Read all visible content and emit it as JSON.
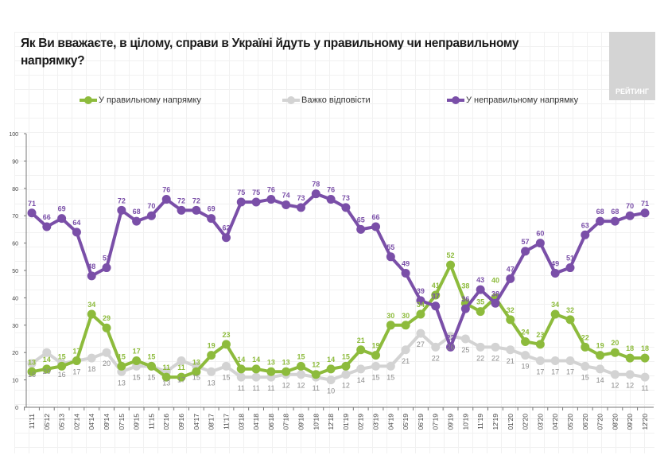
{
  "title": "Як Ви вважаєте, в цілому, справи в Україні йдуть у правильному чи неправильному напрямку?",
  "logo_text": "РЕЙТИНГ",
  "chart_data": {
    "type": "line",
    "title": "Як Ви вважаєте, в цілому, справи в Україні йдуть у правильному чи неправильному напрямку?",
    "xlabel": "",
    "ylabel": "",
    "ylim": [
      0,
      100
    ],
    "yticks": [
      "0",
      "10",
      "20",
      "30",
      "40",
      "50",
      "60",
      "70",
      "80",
      "90",
      "100"
    ],
    "grid": true,
    "legend": "top",
    "x": [
      "11'11",
      "05'12",
      "05'13",
      "02'14",
      "04'14",
      "09'14",
      "07'15",
      "09'15",
      "11'15",
      "02'16",
      "09'16",
      "04'17",
      "08'17",
      "11'17",
      "03'18",
      "04'18",
      "06'18",
      "07'18",
      "09'18",
      "10'18",
      "12'18",
      "01'19",
      "02'19",
      "03'19",
      "04'19",
      "05'19",
      "06'19",
      "07'19",
      "09'19",
      "10'19",
      "11'19",
      "12'19",
      "01'20",
      "02'20",
      "03'20",
      "04'20",
      "05'20",
      "06'20",
      "07'20",
      "08'20",
      "09'20",
      "12'20"
    ],
    "series": [
      {
        "name": "У правильному напрямку",
        "color": "#8dbb3c",
        "labels": "above",
        "values": [
          13,
          14,
          15,
          17,
          34,
          29,
          15,
          17,
          15,
          11,
          11,
          13,
          19,
          23,
          14,
          14,
          13,
          13,
          15,
          12,
          14,
          15,
          21,
          19,
          30,
          30,
          34,
          41,
          52,
          38,
          35,
          40,
          32,
          24,
          23,
          34,
          32,
          22,
          19,
          20,
          18,
          18
        ]
      },
      {
        "name": "Важко відповісти",
        "color": "#d3d3d3",
        "labelColor": "#8a8a8a",
        "labels": "below",
        "values": [
          16,
          20,
          16,
          17,
          18,
          20,
          13,
          15,
          15,
          13,
          17,
          15,
          13,
          15,
          11,
          11,
          11,
          12,
          12,
          11,
          10,
          12,
          14,
          15,
          15,
          21,
          27,
          22,
          26,
          25,
          22,
          22,
          21,
          19,
          17,
          17,
          17,
          15,
          14,
          12,
          12,
          11
        ]
      },
      {
        "name": "У неправильному напрямку",
        "color": "#7a4fa8",
        "labels": "above",
        "values": [
          71,
          66,
          69,
          64,
          48,
          51,
          72,
          68,
          70,
          76,
          72,
          72,
          69,
          62,
          75,
          75,
          76,
          74,
          73,
          78,
          76,
          73,
          65,
          66,
          55,
          49,
          39,
          37,
          22,
          36,
          43,
          38,
          47,
          57,
          60,
          49,
          51,
          63,
          68,
          68,
          70,
          71
        ]
      }
    ]
  }
}
